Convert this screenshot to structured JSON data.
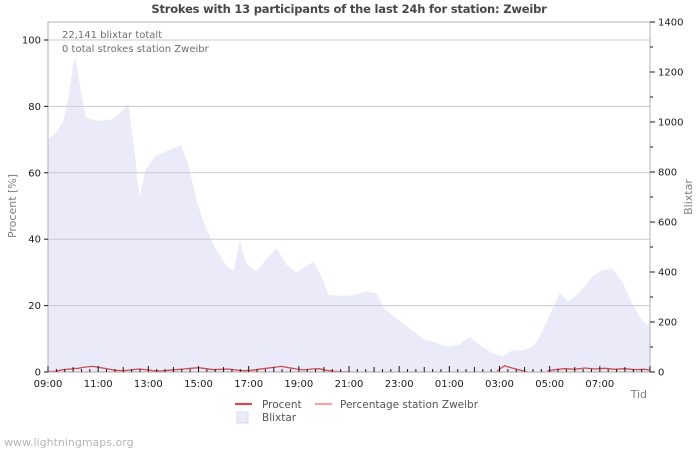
{
  "header": {
    "title": "Strokes with 13 participants of the last 24h for station: Zweibr"
  },
  "annotations": {
    "total_blixtar": "22,141 blixtar totalt",
    "station_strokes": "0 total strokes station Zweibr"
  },
  "axes": {
    "left_label": "Procent  [%]",
    "right_label": "Blixtar",
    "x_label": "Tid",
    "left_ticks": [
      0,
      20,
      40,
      60,
      80,
      100
    ],
    "right_ticks": [
      0,
      200,
      400,
      600,
      800,
      1000,
      1200,
      1400
    ],
    "x_tick_labels": [
      "09:00",
      "11:00",
      "13:00",
      "15:00",
      "17:00",
      "19:00",
      "21:00",
      "23:00",
      "01:00",
      "03:00",
      "05:00",
      "07:00"
    ]
  },
  "legend": {
    "procent_label": "Procent",
    "station_label": "Percentage station Zweibr",
    "blixtar_label": "Blixtar"
  },
  "watermark": "www.lightningmaps.org",
  "colors": {
    "area_fill": "#eaeaf9",
    "procent_line": "#cc5050",
    "station_line": "#f4a6a6",
    "gridline": "#c9c9d3",
    "border": "#b2b2bb",
    "tick": "#1a1a1a"
  },
  "chart_data": {
    "type": "area",
    "title": "Strokes with 13 participants of the last 24h for station: Zweibr",
    "xlabel": "Tid",
    "ylabel_left": "Procent [%]",
    "ylabel_right": "Blixtar",
    "x_unit": "hours since 09:00",
    "x_range_hours": [
      0,
      24
    ],
    "x_start_label": "09:00",
    "ylim_left": [
      0,
      100
    ],
    "ylim_right": [
      0,
      1400
    ],
    "grid": "horizontal",
    "legend_position": "bottom",
    "total_strokes": 22141,
    "station_total_strokes": 0,
    "participants": 13,
    "station": "Zweibr",
    "series": [
      {
        "name": "Blixtar",
        "type": "area",
        "axis": "right",
        "points": [
          [
            0,
            930
          ],
          [
            0.3,
            955
          ],
          [
            0.6,
            1000
          ],
          [
            0.8,
            1090
          ],
          [
            1.0,
            1230
          ],
          [
            1.1,
            1255
          ],
          [
            1.3,
            1130
          ],
          [
            1.5,
            1020
          ],
          [
            1.8,
            1008
          ],
          [
            2.2,
            1005
          ],
          [
            2.6,
            1012
          ],
          [
            3.0,
            1050
          ],
          [
            3.2,
            1072
          ],
          [
            3.45,
            880
          ],
          [
            3.65,
            700
          ],
          [
            3.9,
            810
          ],
          [
            4.3,
            865
          ],
          [
            4.7,
            882
          ],
          [
            5.1,
            900
          ],
          [
            5.3,
            907
          ],
          [
            5.6,
            830
          ],
          [
            5.9,
            690
          ],
          [
            6.3,
            575
          ],
          [
            6.7,
            488
          ],
          [
            7.1,
            428
          ],
          [
            7.4,
            404
          ],
          [
            7.65,
            525
          ],
          [
            7.9,
            435
          ],
          [
            8.3,
            402
          ],
          [
            8.7,
            450
          ],
          [
            9.1,
            497
          ],
          [
            9.5,
            430
          ],
          [
            9.9,
            398
          ],
          [
            10.3,
            425
          ],
          [
            10.6,
            441
          ],
          [
            10.9,
            380
          ],
          [
            11.2,
            308
          ],
          [
            11.7,
            305
          ],
          [
            12.2,
            307
          ],
          [
            12.65,
            322
          ],
          [
            13.1,
            315
          ],
          [
            13.35,
            260
          ],
          [
            14.0,
            205
          ],
          [
            14.5,
            168
          ],
          [
            15.0,
            130
          ],
          [
            15.4,
            120
          ],
          [
            15.9,
            100
          ],
          [
            16.4,
            110
          ],
          [
            16.8,
            140
          ],
          [
            17.2,
            108
          ],
          [
            17.7,
            76
          ],
          [
            18.1,
            62
          ],
          [
            18.5,
            86
          ],
          [
            19.0,
            88
          ],
          [
            19.3,
            100
          ],
          [
            19.6,
            140
          ],
          [
            20.0,
            228
          ],
          [
            20.4,
            315
          ],
          [
            20.75,
            282
          ],
          [
            21.2,
            318
          ],
          [
            21.7,
            382
          ],
          [
            22.1,
            408
          ],
          [
            22.5,
            412
          ],
          [
            22.9,
            362
          ],
          [
            23.3,
            270
          ],
          [
            23.7,
            205
          ],
          [
            23.9,
            188
          ],
          [
            24.0,
            196
          ]
        ]
      },
      {
        "name": "Procent",
        "type": "line",
        "axis": "left",
        "points": [
          [
            0,
            0.1
          ],
          [
            0.3,
            0.2
          ],
          [
            0.6,
            0.7
          ],
          [
            0.9,
            0.9
          ],
          [
            1.2,
            1.1
          ],
          [
            1.5,
            1.5
          ],
          [
            1.8,
            1.7
          ],
          [
            2.1,
            1.3
          ],
          [
            2.4,
            0.9
          ],
          [
            2.7,
            0.5
          ],
          [
            3.0,
            0.4
          ],
          [
            3.3,
            0.6
          ],
          [
            3.6,
            0.9
          ],
          [
            3.9,
            0.7
          ],
          [
            4.2,
            0.4
          ],
          [
            4.5,
            0.3
          ],
          [
            4.8,
            0.5
          ],
          [
            5.1,
            0.7
          ],
          [
            5.4,
            0.9
          ],
          [
            5.7,
            1.1
          ],
          [
            6.0,
            1.3
          ],
          [
            6.3,
            1.0
          ],
          [
            6.6,
            0.7
          ],
          [
            6.9,
            0.8
          ],
          [
            7.2,
            0.9
          ],
          [
            7.5,
            0.6
          ],
          [
            7.8,
            0.4
          ],
          [
            8.1,
            0.5
          ],
          [
            8.4,
            0.8
          ],
          [
            8.7,
            1.1
          ],
          [
            9.0,
            1.4
          ],
          [
            9.3,
            1.7
          ],
          [
            9.6,
            1.3
          ],
          [
            9.9,
            0.9
          ],
          [
            10.2,
            0.6
          ],
          [
            10.5,
            0.9
          ],
          [
            10.8,
            1.0
          ],
          [
            11.1,
            0.5
          ],
          [
            11.4,
            0.2
          ],
          [
            11.7,
            0.1
          ],
          [
            12.0,
            0.05
          ],
          [
            12.3,
            null
          ],
          [
            17.8,
            null
          ],
          [
            17.9,
            0.3
          ],
          [
            18.2,
            1.9
          ],
          [
            18.5,
            1.2
          ],
          [
            18.8,
            0.6
          ],
          [
            19.1,
            0.1
          ],
          [
            19.4,
            null
          ],
          [
            19.7,
            null
          ],
          [
            19.9,
            0.3
          ],
          [
            20.3,
            0.8
          ],
          [
            20.6,
            1.0
          ],
          [
            21.0,
            0.8
          ],
          [
            21.4,
            1.2
          ],
          [
            21.8,
            0.9
          ],
          [
            22.2,
            1.1
          ],
          [
            22.6,
            0.8
          ],
          [
            23.0,
            1.0
          ],
          [
            23.4,
            0.7
          ],
          [
            23.8,
            0.8
          ],
          [
            24.0,
            0.6
          ]
        ]
      },
      {
        "name": "Percentage station Zweibr",
        "type": "line",
        "axis": "left",
        "points": [
          [
            0,
            0
          ],
          [
            24,
            0
          ]
        ]
      }
    ]
  }
}
